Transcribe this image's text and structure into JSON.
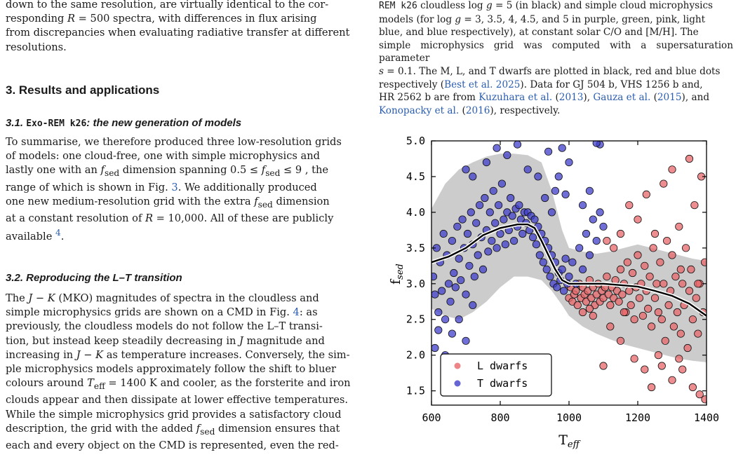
{
  "left_column": {
    "para0": {
      "l1": "down to the same resolution, are virtually identical to the cor-",
      "l2a": "responding ",
      "l2b": "R",
      "l2c": " = 500 spectra, with differences in flux arising",
      "l3": "from discrepancies when evaluating radiative transfer at different",
      "l4": "resolutions."
    },
    "section3": "3. Results and applications",
    "sub31": {
      "num": "3.1. ",
      "code": "Exo-REM k26",
      "rest": ": the new generation of models"
    },
    "para1": {
      "l1": "To summarise, we therefore produced three low-resolution grids",
      "l2": "of models: one cloud-free, one with simple microphysics and",
      "l3a": "lastly one with an ",
      "l3b": "f",
      "l3c": "sed",
      "l3d": " dimension spanning 0.5 ≤ ",
      "l3e": "f",
      "l3f": "sed",
      "l3g": " ≤ 9 , the",
      "l4a": "range of which is shown in Fig. ",
      "l4b": "3",
      "l4c": ". We additionally produced",
      "l5a": "one new medium-resolution grid with the extra ",
      "l5b": "f",
      "l5c": "sed",
      "l5d": " dimension",
      "l6a": "at a constant resolution of ",
      "l6b": "R",
      "l6c": " = 10,000. All of these are publicly",
      "l7a": "available ",
      "l7b": "4",
      "l7c": "."
    },
    "sub32": "3.2. Reproducing the L–T transition",
    "para2": {
      "l1a": "The ",
      "l1b": "J",
      "l1c": " − ",
      "l1d": "K",
      "l1e": " (MKO) magnitudes of spectra in the cloudless and",
      "l2a": "simple microphysics grids are shown on a CMD in Fig. ",
      "l2b": "4",
      "l2c": ": as",
      "l3": "previously, the cloudless models do not follow the L–T transi-",
      "l4a": "tion, but instead keep steadily decreasing in ",
      "l4b": "J",
      "l4c": " magnitude and",
      "l5a": "increasing in ",
      "l5b": "J",
      "l5c": " − ",
      "l5d": "K",
      "l5e": " as temperature increases. Conversely, the sim-",
      "l6": "ple microphysics models approximately follow the shift to bluer",
      "l7a": "colours around ",
      "l7b": "T",
      "l7c": "eff",
      "l7d": " = 1400 K and cooler, as the forsterite and iron",
      "l8": "clouds appear and then dissipate at lower effective temperatures.",
      "l9": "While the simple microphysics grid provides a satisfactory cloud",
      "l10a": "description, the grid with the added ",
      "l10b": "f",
      "l10c": "sed",
      "l10d": " dimension ensures that",
      "l11": "each and every object on the CMD is represented, even the red-"
    }
  },
  "right_column": {
    "caption": {
      "l1a": "REM k26",
      "l1b": " cloudless log ",
      "l1c": "g",
      "l1d": " = 5 (in black) and simple cloud microphysics",
      "l2a": "models (for log ",
      "l2b": "g",
      "l2c": " = 3, 3.5, 4, 4.5, and 5 in purple, green, pink, light",
      "l3": "blue, and blue respectively), at constant solar C/O and [M/H]. The",
      "l4": "simple microphysics grid was computed with a supersaturation parameter",
      "l5a": "s",
      "l5b": " = 0.1. The M, L, and T dwarfs are plotted in black, red and blue dots",
      "l6a": "respectively (",
      "l6b": "Best et al. 2025",
      "l6c": "). Data for GJ 504 b, VHS 1256 b and,",
      "l7a": "HR 2562 b are from ",
      "l7b": "Kuzuhara et al.",
      "l7c": " (",
      "l7d": "2013",
      "l7e": "), ",
      "l7f": "Gauza et al.",
      "l7g": " (",
      "l7h": "2015",
      "l7i": "), and",
      "l8a": "Konopacky et al.",
      "l8b": " (",
      "l8c": "2016",
      "l8d": "), respectively."
    }
  },
  "chart_data": {
    "type": "scatter",
    "xlabel_main": "T",
    "xlabel_sub": "eff",
    "ylabel_main": "f",
    "ylabel_sub": "sed",
    "xlim": [
      600,
      1400
    ],
    "ylim": [
      1.3,
      5.0
    ],
    "xticks": [
      600,
      800,
      1000,
      1200,
      1400
    ],
    "yticks": [
      1.5,
      2.0,
      2.5,
      3.0,
      3.5,
      4.0,
      4.5,
      5.0
    ],
    "x_tick_labels": [
      "600",
      "800",
      "1000",
      "1200",
      "1400"
    ],
    "y_tick_labels": [
      "1.5",
      "2.0",
      "2.5",
      "3.0",
      "3.5",
      "4.0",
      "4.5",
      "5.0"
    ],
    "legend": [
      {
        "name": "L dwarfs",
        "color": "#e8676a"
      },
      {
        "name": "T dwarfs",
        "color": "#3f3fc9"
      }
    ],
    "legend_position": "lower-left",
    "colors": {
      "shade": "#c9c9c9",
      "L": "#e8676a",
      "T": "#3f3fc9",
      "curve": "#000000"
    },
    "shaded_band": {
      "x": [
        600,
        640,
        680,
        720,
        760,
        800,
        840,
        880,
        920,
        950,
        980,
        1000,
        1040,
        1080,
        1120,
        1160,
        1200,
        1240,
        1280,
        1320,
        1360,
        1400
      ],
      "upper": [
        4.05,
        4.4,
        4.6,
        4.7,
        4.78,
        4.82,
        4.82,
        4.8,
        4.7,
        4.3,
        3.75,
        3.5,
        3.45,
        3.42,
        3.45,
        3.5,
        3.55,
        3.5,
        3.45,
        3.4,
        3.35,
        3.32
      ],
      "lower": [
        2.65,
        2.55,
        2.5,
        2.6,
        2.75,
        2.95,
        3.1,
        3.1,
        3.05,
        2.9,
        2.7,
        2.55,
        2.4,
        2.3,
        2.22,
        2.15,
        2.1,
        2.05,
        2.0,
        1.95,
        1.92,
        1.9
      ]
    },
    "curve": {
      "x": [
        600,
        650,
        700,
        750,
        800,
        850,
        880,
        900,
        920,
        940,
        960,
        980,
        1000,
        1050,
        1100,
        1150,
        1200,
        1250,
        1300,
        1350,
        1400
      ],
      "y": [
        3.3,
        3.38,
        3.5,
        3.68,
        3.78,
        3.83,
        3.83,
        3.78,
        3.6,
        3.4,
        3.2,
        3.05,
        3.0,
        3.0,
        3.0,
        2.98,
        2.96,
        2.9,
        2.83,
        2.72,
        2.55
      ]
    },
    "series": [
      {
        "name": "L dwarfs",
        "points": [
          [
            1000,
            2.8
          ],
          [
            1005,
            2.95
          ],
          [
            1010,
            2.75
          ],
          [
            1015,
            2.85
          ],
          [
            1020,
            2.9
          ],
          [
            1025,
            2.7
          ],
          [
            1030,
            3.0
          ],
          [
            1035,
            2.8
          ],
          [
            1040,
            2.95
          ],
          [
            1045,
            2.85
          ],
          [
            1050,
            2.75
          ],
          [
            1055,
            2.9
          ],
          [
            1060,
            3.05
          ],
          [
            1065,
            2.8
          ],
          [
            1070,
            2.95
          ],
          [
            1075,
            2.7
          ],
          [
            1080,
            2.85
          ],
          [
            1085,
            3.0
          ],
          [
            1090,
            2.75
          ],
          [
            1095,
            2.9
          ],
          [
            1100,
            2.8
          ],
          [
            1105,
            2.95
          ],
          [
            1110,
            3.1
          ],
          [
            1115,
            2.85
          ],
          [
            1120,
            2.7
          ],
          [
            1125,
            2.95
          ],
          [
            1130,
            2.8
          ],
          [
            1135,
            3.05
          ],
          [
            1140,
            2.9
          ],
          [
            1145,
            2.75
          ],
          [
            1150,
            3.2
          ],
          [
            1155,
            2.85
          ],
          [
            1160,
            3.0
          ],
          [
            1165,
            2.6
          ],
          [
            1170,
            3.3
          ],
          [
            1175,
            2.9
          ],
          [
            1180,
            2.7
          ],
          [
            1185,
            3.15
          ],
          [
            1190,
            2.5
          ],
          [
            1195,
            2.95
          ],
          [
            1200,
            3.4
          ],
          [
            1205,
            2.8
          ],
          [
            1210,
            3.0
          ],
          [
            1215,
            2.55
          ],
          [
            1220,
            3.25
          ],
          [
            1225,
            2.9
          ],
          [
            1230,
            2.65
          ],
          [
            1235,
            3.1
          ],
          [
            1240,
            2.4
          ],
          [
            1245,
            3.5
          ],
          [
            1250,
            2.8
          ],
          [
            1255,
            3.0
          ],
          [
            1260,
            2.6
          ],
          [
            1265,
            3.3
          ],
          [
            1270,
            2.5
          ],
          [
            1275,
            3.0
          ],
          [
            1280,
            2.2
          ],
          [
            1285,
            3.6
          ],
          [
            1290,
            2.7
          ],
          [
            1295,
            2.9
          ],
          [
            1300,
            3.4
          ],
          [
            1305,
            2.4
          ],
          [
            1310,
            3.1
          ],
          [
            1315,
            2.6
          ],
          [
            1320,
            3.8
          ],
          [
            1325,
            2.3
          ],
          [
            1330,
            3.0
          ],
          [
            1335,
            2.7
          ],
          [
            1340,
            3.5
          ],
          [
            1345,
            2.1
          ],
          [
            1350,
            2.9
          ],
          [
            1355,
            3.2
          ],
          [
            1360,
            2.5
          ],
          [
            1365,
            4.1
          ],
          [
            1370,
            2.8
          ],
          [
            1375,
            2.3
          ],
          [
            1380,
            3.0
          ],
          [
            1385,
            4.5
          ],
          [
            1390,
            2.6
          ],
          [
            1395,
            3.3
          ],
          [
            1150,
            3.7
          ],
          [
            1175,
            4.1
          ],
          [
            1200,
            3.9
          ],
          [
            1225,
            4.25
          ],
          [
            1250,
            3.7
          ],
          [
            1275,
            4.4
          ],
          [
            1300,
            4.6
          ],
          [
            1325,
            3.2
          ],
          [
            1350,
            4.75
          ],
          [
            1375,
            3.0
          ],
          [
            1150,
            2.2
          ],
          [
            1190,
            1.95
          ],
          [
            1220,
            1.8
          ],
          [
            1260,
            2.0
          ],
          [
            1300,
            1.65
          ],
          [
            1330,
            1.8
          ],
          [
            1360,
            1.55
          ],
          [
            1380,
            1.45
          ],
          [
            1396,
            1.38
          ],
          [
            1240,
            1.55
          ],
          [
            1130,
            3.5
          ],
          [
            1110,
            3.6
          ],
          [
            1120,
            2.4
          ],
          [
            1160,
            2.6
          ],
          [
            1060,
            2.65
          ],
          [
            1040,
            2.6
          ],
          [
            1070,
            2.55
          ],
          [
            1320,
            1.95
          ],
          [
            1270,
            1.85
          ],
          [
            1100,
            1.85
          ]
        ]
      },
      {
        "name": "T dwarfs",
        "points": [
          [
            605,
            3.1
          ],
          [
            610,
            2.85
          ],
          [
            615,
            3.5
          ],
          [
            620,
            2.6
          ],
          [
            625,
            3.3
          ],
          [
            630,
            2.9
          ],
          [
            635,
            3.7
          ],
          [
            640,
            2.5
          ],
          [
            645,
            3.4
          ],
          [
            650,
            3.0
          ],
          [
            655,
            2.75
          ],
          [
            660,
            3.6
          ],
          [
            665,
            3.15
          ],
          [
            670,
            2.95
          ],
          [
            675,
            3.8
          ],
          [
            680,
            3.35
          ],
          [
            685,
            3.05
          ],
          [
            690,
            3.9
          ],
          [
            695,
            3.5
          ],
          [
            700,
            2.85
          ],
          [
            705,
            3.7
          ],
          [
            710,
            3.25
          ],
          [
            715,
            4.0
          ],
          [
            720,
            3.55
          ],
          [
            725,
            3.1
          ],
          [
            730,
            3.85
          ],
          [
            735,
            3.4
          ],
          [
            740,
            4.1
          ],
          [
            745,
            3.65
          ],
          [
            750,
            3.2
          ],
          [
            755,
            4.2
          ],
          [
            760,
            3.75
          ],
          [
            765,
            3.45
          ],
          [
            770,
            4.0
          ],
          [
            775,
            3.6
          ],
          [
            780,
            4.3
          ],
          [
            785,
            3.85
          ],
          [
            790,
            3.5
          ],
          [
            795,
            4.1
          ],
          [
            800,
            3.7
          ],
          [
            805,
            4.4
          ],
          [
            810,
            3.9
          ],
          [
            815,
            3.55
          ],
          [
            820,
            4.0
          ],
          [
            825,
            3.75
          ],
          [
            830,
            4.2
          ],
          [
            835,
            3.95
          ],
          [
            840,
            3.6
          ],
          [
            845,
            4.05
          ],
          [
            850,
            3.8
          ],
          [
            855,
            4.1
          ],
          [
            860,
            3.9
          ],
          [
            865,
            3.7
          ],
          [
            870,
            4.0
          ],
          [
            875,
            3.85
          ],
          [
            880,
            4.0
          ],
          [
            885,
            3.75
          ],
          [
            890,
            3.95
          ],
          [
            895,
            3.65
          ],
          [
            900,
            3.9
          ],
          [
            905,
            3.55
          ],
          [
            910,
            3.8
          ],
          [
            915,
            3.4
          ],
          [
            920,
            3.7
          ],
          [
            925,
            3.3
          ],
          [
            930,
            3.6
          ],
          [
            935,
            3.2
          ],
          [
            940,
            3.5
          ],
          [
            945,
            3.1
          ],
          [
            950,
            3.4
          ],
          [
            955,
            3.0
          ],
          [
            960,
            3.3
          ],
          [
            965,
            2.95
          ],
          [
            970,
            3.15
          ],
          [
            975,
            3.05
          ],
          [
            980,
            3.2
          ],
          [
            985,
            2.9
          ],
          [
            990,
            3.35
          ],
          [
            995,
            3.0
          ],
          [
            1000,
            3.1
          ],
          [
            1010,
            3.3
          ],
          [
            1020,
            3.0
          ],
          [
            1030,
            3.5
          ],
          [
            1040,
            3.2
          ],
          [
            1050,
            3.7
          ],
          [
            1060,
            3.4
          ],
          [
            1070,
            3.9
          ],
          [
            1080,
            3.6
          ],
          [
            1090,
            4.0
          ],
          [
            1100,
            3.8
          ],
          [
            700,
            4.6
          ],
          [
            720,
            4.5
          ],
          [
            760,
            4.7
          ],
          [
            790,
            4.9
          ],
          [
            820,
            4.8
          ],
          [
            850,
            4.95
          ],
          [
            880,
            4.6
          ],
          [
            910,
            4.5
          ],
          [
            940,
            4.85
          ],
          [
            960,
            4.3
          ],
          [
            660,
            2.3
          ],
          [
            680,
            2.5
          ],
          [
            700,
            2.2
          ],
          [
            720,
            2.7
          ],
          [
            640,
            2.0
          ],
          [
            620,
            2.35
          ],
          [
            610,
            2.1
          ],
          [
            650,
            1.9
          ],
          [
            700,
            1.75
          ],
          [
            680,
            1.95
          ],
          [
            1090,
            4.95
          ],
          [
            1080,
            4.97
          ],
          [
            1000,
            4.7
          ],
          [
            980,
            4.9
          ],
          [
            970,
            4.5
          ],
          [
            1040,
            4.1
          ],
          [
            1060,
            4.3
          ],
          [
            990,
            4.25
          ],
          [
            950,
            4.0
          ],
          [
            930,
            4.2
          ]
        ]
      }
    ]
  }
}
